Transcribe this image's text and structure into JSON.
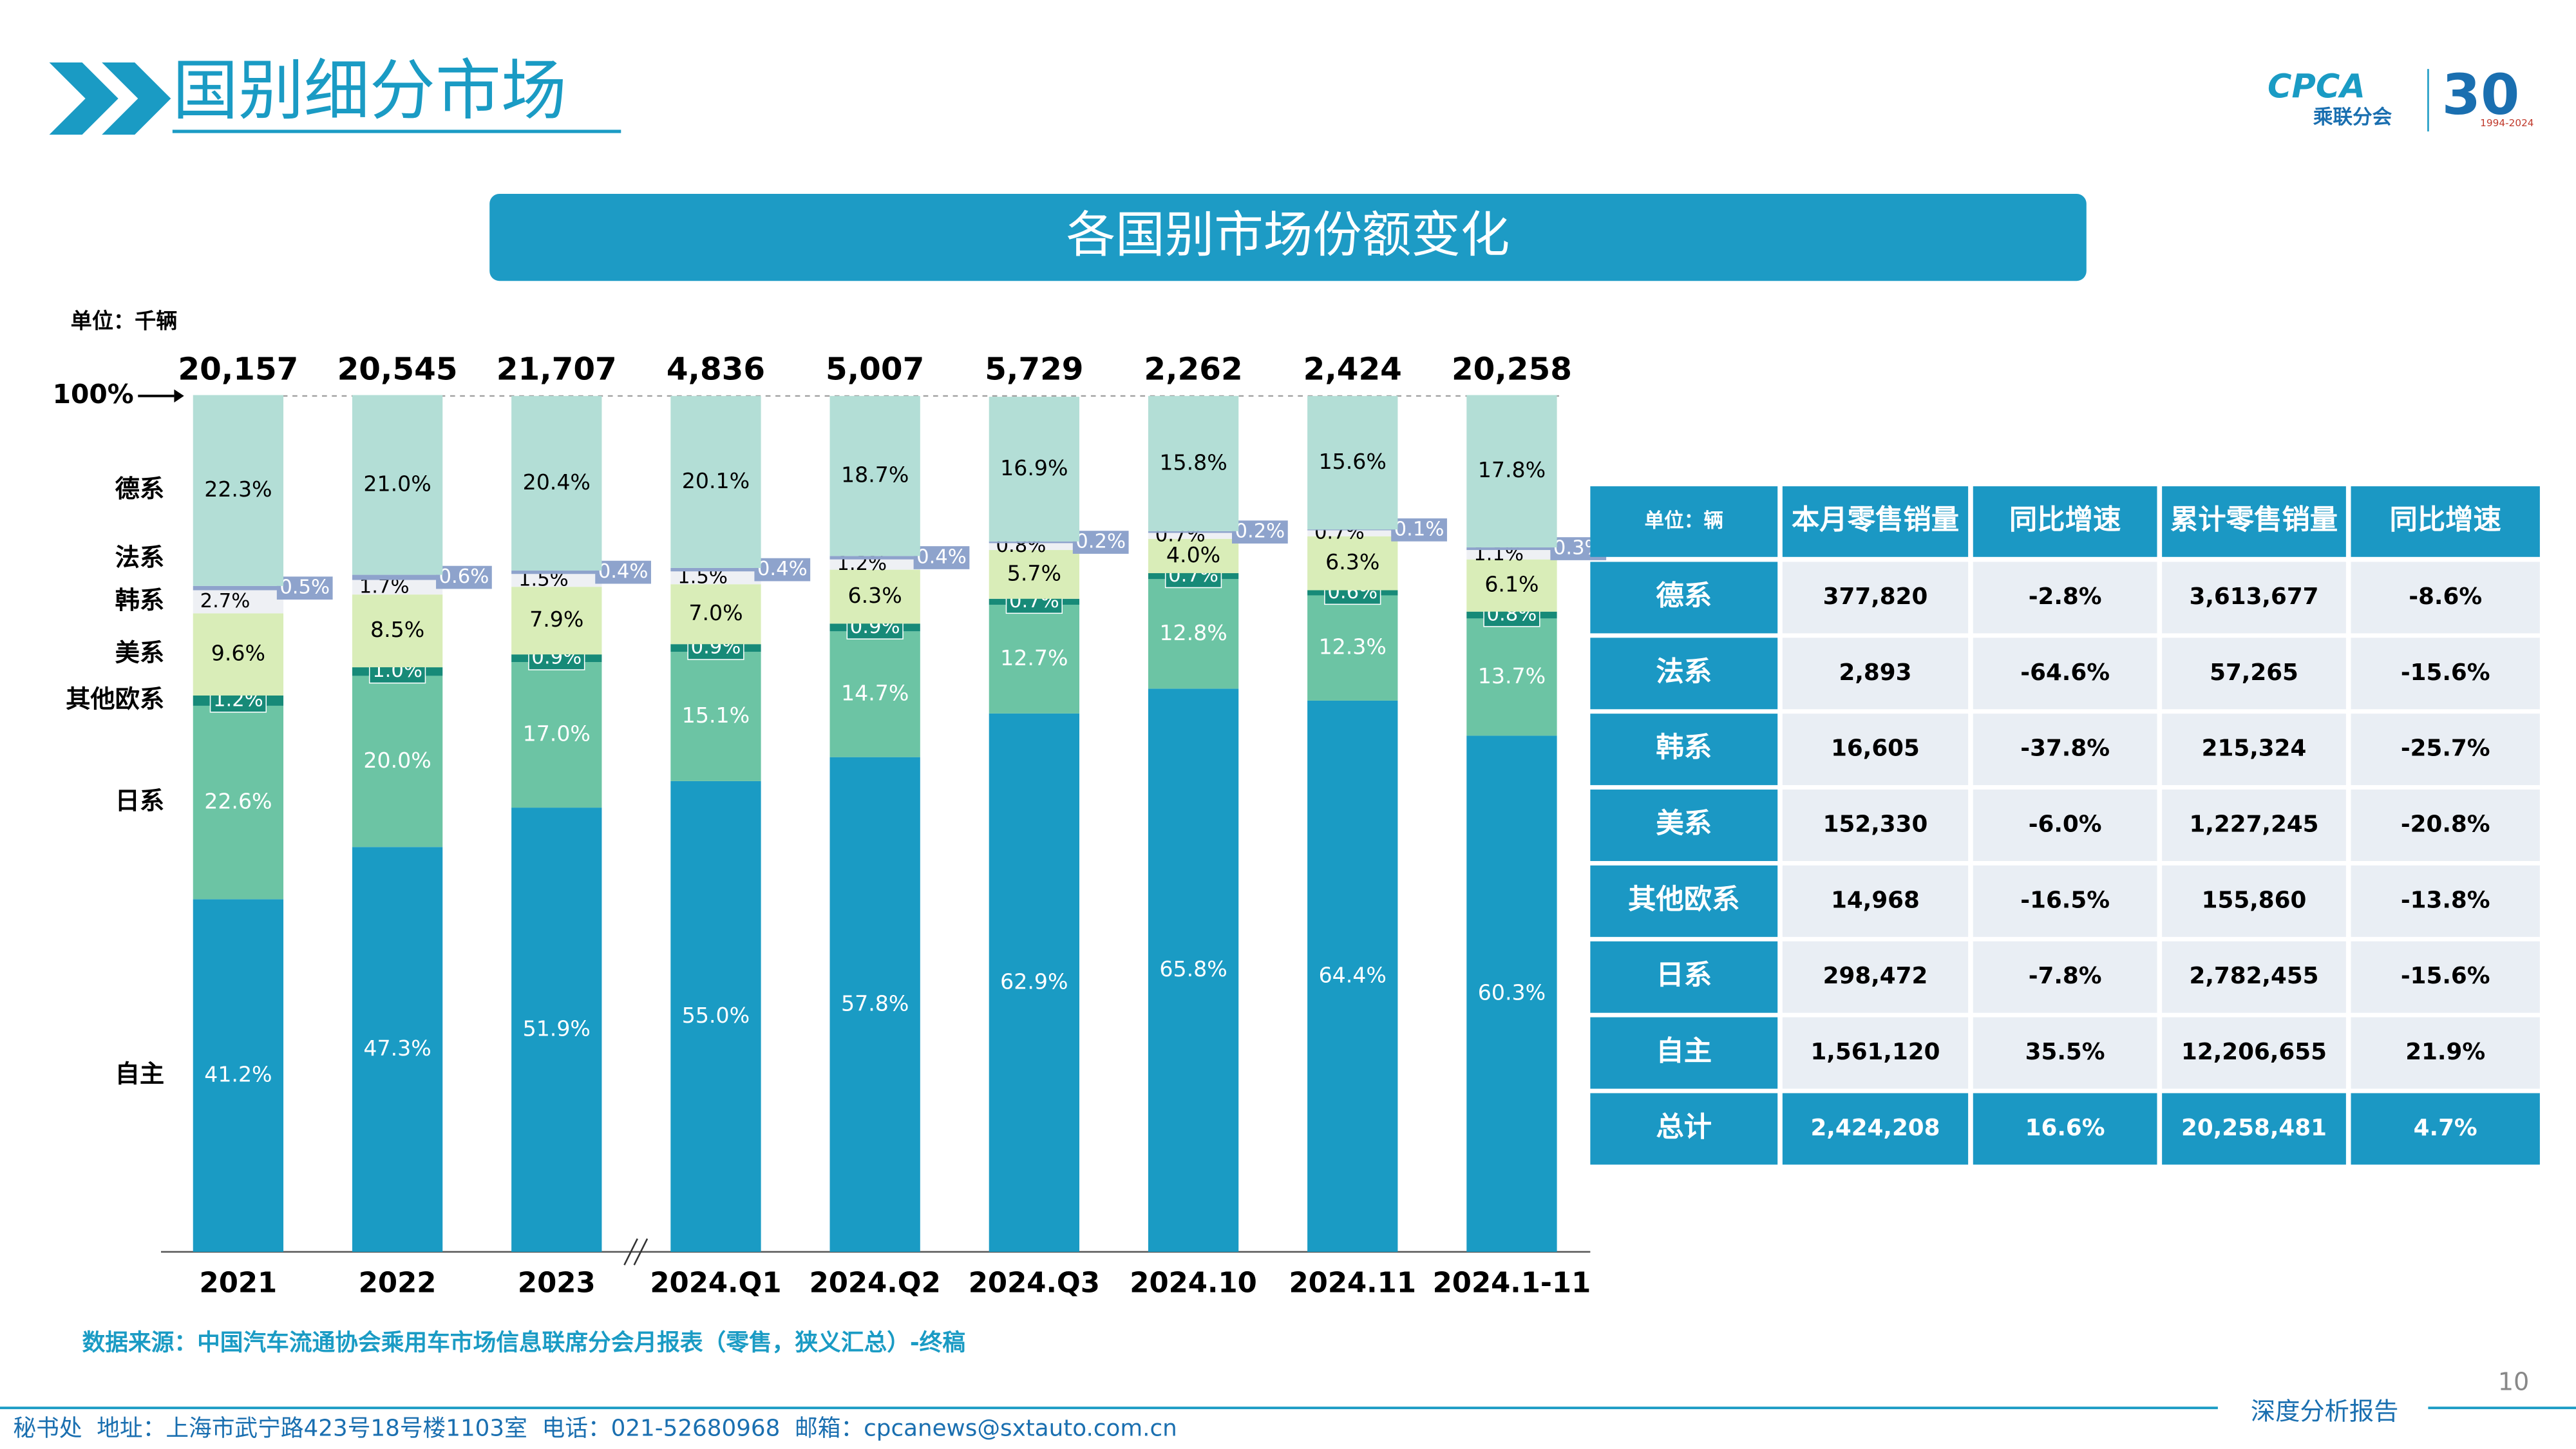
{
  "header": {
    "title": "国别细分市场",
    "banner": "各国别市场份额变化",
    "logo": {
      "name": "CPCA",
      "cn": "乘联分会",
      "anniversary": "30",
      "years": "1994-2024"
    }
  },
  "chart_data": {
    "type": "stacked_bar",
    "unit": "单位：千辆",
    "categories": [
      "2021",
      "2022",
      "2023",
      "2024.Q1",
      "2024.Q2",
      "2024.Q3",
      "2024.10",
      "2024.11",
      "2024.1-11"
    ],
    "ylim": [
      0,
      100
    ],
    "yticks": [
      {
        "value": 100,
        "label": "100%"
      }
    ],
    "totals": {
      "values": [
        20157,
        20545,
        21707,
        4836,
        5007,
        5729,
        2262,
        2424,
        20258
      ],
      "value_labels": [
        "20,157",
        "20,545",
        "21,707",
        "4,836",
        "5,007",
        "5,729",
        "2,262",
        "2,424",
        "20,258"
      ]
    },
    "series": [
      {
        "name": "自主",
        "color": "#1a9bc4",
        "values": [
          41.2,
          47.3,
          51.9,
          55.0,
          57.8,
          62.9,
          65.8,
          64.4,
          60.3
        ],
        "value_labels": [
          "41.2%",
          "47.3%",
          "51.9%",
          "55.0%",
          "57.8%",
          "62.9%",
          "65.8%",
          "64.4%",
          "60.3%"
        ]
      },
      {
        "name": "日系",
        "color": "#6cc4a4",
        "values": [
          22.6,
          20.0,
          17.0,
          15.1,
          14.7,
          12.7,
          12.8,
          12.3,
          13.7
        ],
        "value_labels": [
          "22.6%",
          "20.0%",
          "17.0%",
          "15.1%",
          "14.7%",
          "12.7%",
          "12.8%",
          "12.3%",
          "13.7%"
        ]
      },
      {
        "name": "其他欧系",
        "color": "#178a78",
        "values": [
          1.2,
          1.0,
          0.9,
          0.9,
          0.9,
          0.7,
          0.7,
          0.6,
          0.8
        ],
        "value_labels": [
          "1.2%",
          "1.0%",
          "0.9%",
          "0.9%",
          "0.9%",
          "0.7%",
          "0.7%",
          "0.6%",
          "0.8%"
        ]
      },
      {
        "name": "美系",
        "color": "#d9edb8",
        "values": [
          9.6,
          8.5,
          7.9,
          7.0,
          6.3,
          5.7,
          4.0,
          6.3,
          6.1
        ],
        "value_labels": [
          "9.6%",
          "8.5%",
          "7.9%",
          "7.0%",
          "6.3%",
          "5.7%",
          "4.0%",
          "6.3%",
          "6.1%"
        ]
      },
      {
        "name": "韩系",
        "color": "#eef0f4",
        "values": [
          2.7,
          1.7,
          1.5,
          1.5,
          1.2,
          0.8,
          0.7,
          0.7,
          1.1
        ],
        "value_labels": [
          "2.7%",
          "1.7%",
          "1.5%",
          "1.5%",
          "1.2%",
          "0.8%",
          "0.7%",
          "0.7%",
          "1.1%"
        ]
      },
      {
        "name": "法系",
        "color": "#8ea3cc",
        "values": [
          0.5,
          0.6,
          0.4,
          0.4,
          0.4,
          0.2,
          0.2,
          0.1,
          0.3
        ],
        "value_labels": [
          "0.5%",
          "0.6%",
          "0.4%",
          "0.4%",
          "0.4%",
          "0.2%",
          "0.2%",
          "0.1%",
          "0.3%"
        ]
      },
      {
        "name": "德系",
        "color": "#b3ded6",
        "values": [
          22.3,
          21.0,
          20.4,
          20.1,
          18.7,
          16.9,
          15.8,
          15.6,
          17.8
        ],
        "value_labels": [
          "22.3%",
          "21.0%",
          "20.4%",
          "20.1%",
          "18.7%",
          "16.9%",
          "15.8%",
          "15.6%",
          "17.8%"
        ]
      }
    ]
  },
  "table": {
    "header": [
      "单位：辆",
      "本月零售销量",
      "同比增速",
      "累计零售销量",
      "同比增速"
    ],
    "rows": [
      [
        "德系",
        "377,820",
        "-2.8%",
        "3,613,677",
        "-8.6%"
      ],
      [
        "法系",
        "2,893",
        "-64.6%",
        "57,265",
        "-15.6%"
      ],
      [
        "韩系",
        "16,605",
        "-37.8%",
        "215,324",
        "-25.7%"
      ],
      [
        "美系",
        "152,330",
        "-6.0%",
        "1,227,245",
        "-20.8%"
      ],
      [
        "其他欧系",
        "14,968",
        "-16.5%",
        "155,860",
        "-13.8%"
      ],
      [
        "日系",
        "298,472",
        "-7.8%",
        "2,782,455",
        "-15.6%"
      ],
      [
        "自主",
        "1,561,120",
        "35.5%",
        "12,206,655",
        "21.9%"
      ],
      [
        "总计",
        "2,424,208",
        "16.6%",
        "20,258,481",
        "4.7%"
      ]
    ]
  },
  "footer": {
    "source": "数据来源：中国汽车流通协会乘用车市场信息联席分会月报表（零售，狭义汇总）-终稿",
    "page_number": "10",
    "report": "深度分析报告",
    "contact": "秘书处  地址：上海市武宁路423号18号楼1103室  电话：021-52680968  邮箱：cpcanews@sxtauto.com.cn"
  }
}
